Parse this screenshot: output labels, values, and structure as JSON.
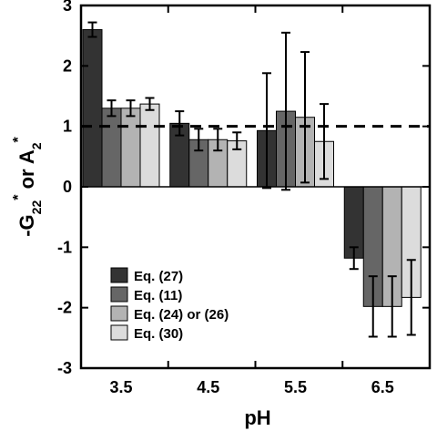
{
  "chart_data": {
    "type": "bar",
    "xlabel": "pH",
    "ylabel": {
      "main": "-G",
      "sub1": "22",
      "sup1": "*",
      "mid": " or A",
      "sub2": "2",
      "sup2": "*"
    },
    "categories": [
      "3.5",
      "4.5",
      "5.5",
      "6.5"
    ],
    "ylim": [
      -3,
      3
    ],
    "yticks": [
      "3",
      "2",
      "1",
      "0",
      "-1",
      "-2",
      "-3"
    ],
    "reference_line": {
      "y": 1,
      "style": "dashed"
    },
    "legend_position": "bottom-left",
    "series": [
      {
        "name": "Eq. (27)",
        "color": "#333333",
        "values": [
          2.6,
          1.05,
          0.93,
          -1.18
        ],
        "errors": [
          0.12,
          0.2,
          0.95,
          0.18
        ]
      },
      {
        "name": "Eq. (11)",
        "color": "#666666",
        "values": [
          1.3,
          0.78,
          1.25,
          -1.98
        ],
        "errors": [
          0.13,
          0.18,
          1.3,
          0.5
        ]
      },
      {
        "name": "Eq. (24) or (26)",
        "color": "#b3b3b3",
        "values": [
          1.3,
          0.78,
          1.15,
          -1.98
        ],
        "errors": [
          0.13,
          0.18,
          1.08,
          0.5
        ]
      },
      {
        "name": "Eq. (30)",
        "color": "#dcdcdc",
        "values": [
          1.37,
          0.76,
          0.75,
          -1.83
        ],
        "errors": [
          0.1,
          0.14,
          0.62,
          0.62
        ]
      }
    ]
  }
}
